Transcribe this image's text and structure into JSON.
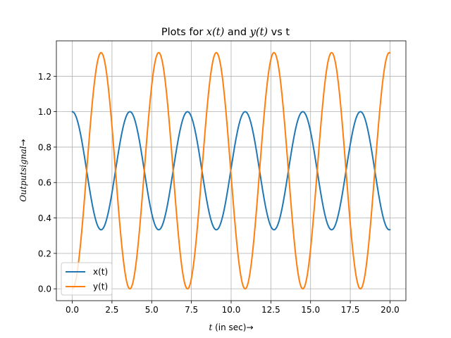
{
  "chart_data": {
    "type": "line",
    "title": {
      "prefix": "Plots for ",
      "x_expr": "x(t)",
      "middle": " and ",
      "y_expr": "y(t)",
      "suffix": " vs t"
    },
    "xlabel": {
      "var": "t",
      "text": " (in sec)→"
    },
    "ylabel": {
      "text": "Outputsignal",
      "arrow": "→"
    },
    "xlim": [
      -1.0,
      21.0
    ],
    "ylim": [
      -0.067,
      1.4
    ],
    "x_ticks": [
      0.0,
      2.5,
      5.0,
      7.5,
      10.0,
      12.5,
      15.0,
      17.5,
      20.0
    ],
    "x_tick_labels": [
      "0.0",
      "2.5",
      "5.0",
      "7.5",
      "10.0",
      "12.5",
      "15.0",
      "17.5",
      "20.0"
    ],
    "y_ticks": [
      0.0,
      0.2,
      0.4,
      0.6,
      0.8,
      1.0,
      1.2
    ],
    "y_tick_labels": [
      "0.0",
      "0.2",
      "0.4",
      "0.6",
      "0.8",
      "1.0",
      "1.2"
    ],
    "grid": true,
    "legend_position": "lower-left",
    "t_range": [
      0,
      20
    ],
    "series": [
      {
        "name": "x(t)",
        "color": "#1f77b4",
        "formula": "x(t) = (2 + cos(√3 t)) / 3",
        "values": {
          "max": 1.0,
          "min": 0.3333,
          "period": 3.6276
        }
      },
      {
        "name": "y(t)",
        "color": "#ff7f0e",
        "formula": "y(t) = (2/3) · (1 − cos(√3 t))",
        "values": {
          "max": 1.3333,
          "min": 0.0,
          "period": 3.6276
        }
      }
    ]
  }
}
